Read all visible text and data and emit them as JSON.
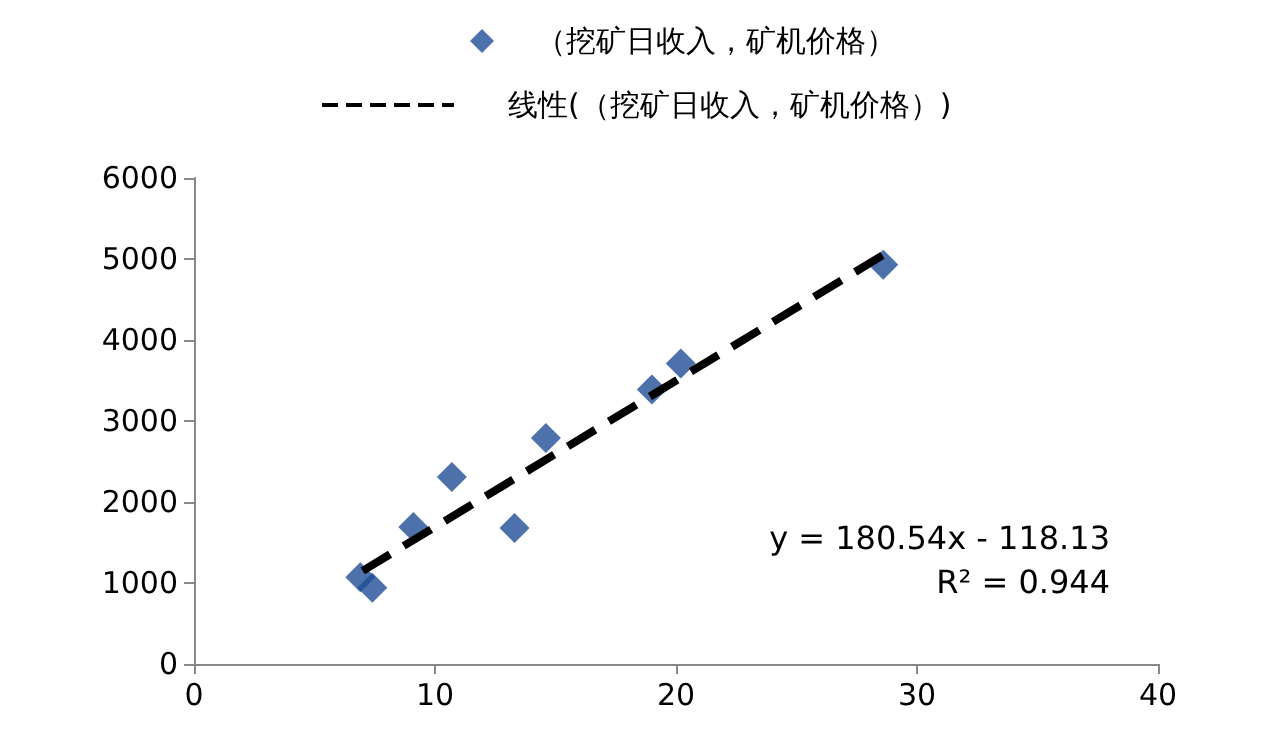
{
  "chart_data": {
    "type": "scatter",
    "series": [
      {
        "name": "（挖矿日收入，矿机价格）",
        "color": "#1f4e96",
        "marker": "diamond",
        "x": [
          6.9,
          7.4,
          9.1,
          10.7,
          13.3,
          14.6,
          19.0,
          20.2,
          28.6
        ],
        "values": [
          1070,
          940,
          1690,
          2310,
          1680,
          2790,
          3390,
          3710,
          4930
        ]
      },
      {
        "name": "线性(（挖矿日收入，矿机价格）)",
        "type": "line",
        "color": "#000000",
        "line_style": "dashed",
        "x": [
          7,
          28.6
        ],
        "values": [
          1150,
          5050
        ]
      }
    ],
    "xlim": [
      0,
      40
    ],
    "xticks": [
      0,
      10,
      20,
      30,
      40
    ],
    "ylim": [
      0,
      6000
    ],
    "yticks": [
      0,
      1000,
      2000,
      3000,
      4000,
      5000,
      6000
    ],
    "grid": false,
    "legend": "top",
    "annotations": [
      "y = 180.54x - 118.13",
      "R² = 0.944"
    ]
  }
}
